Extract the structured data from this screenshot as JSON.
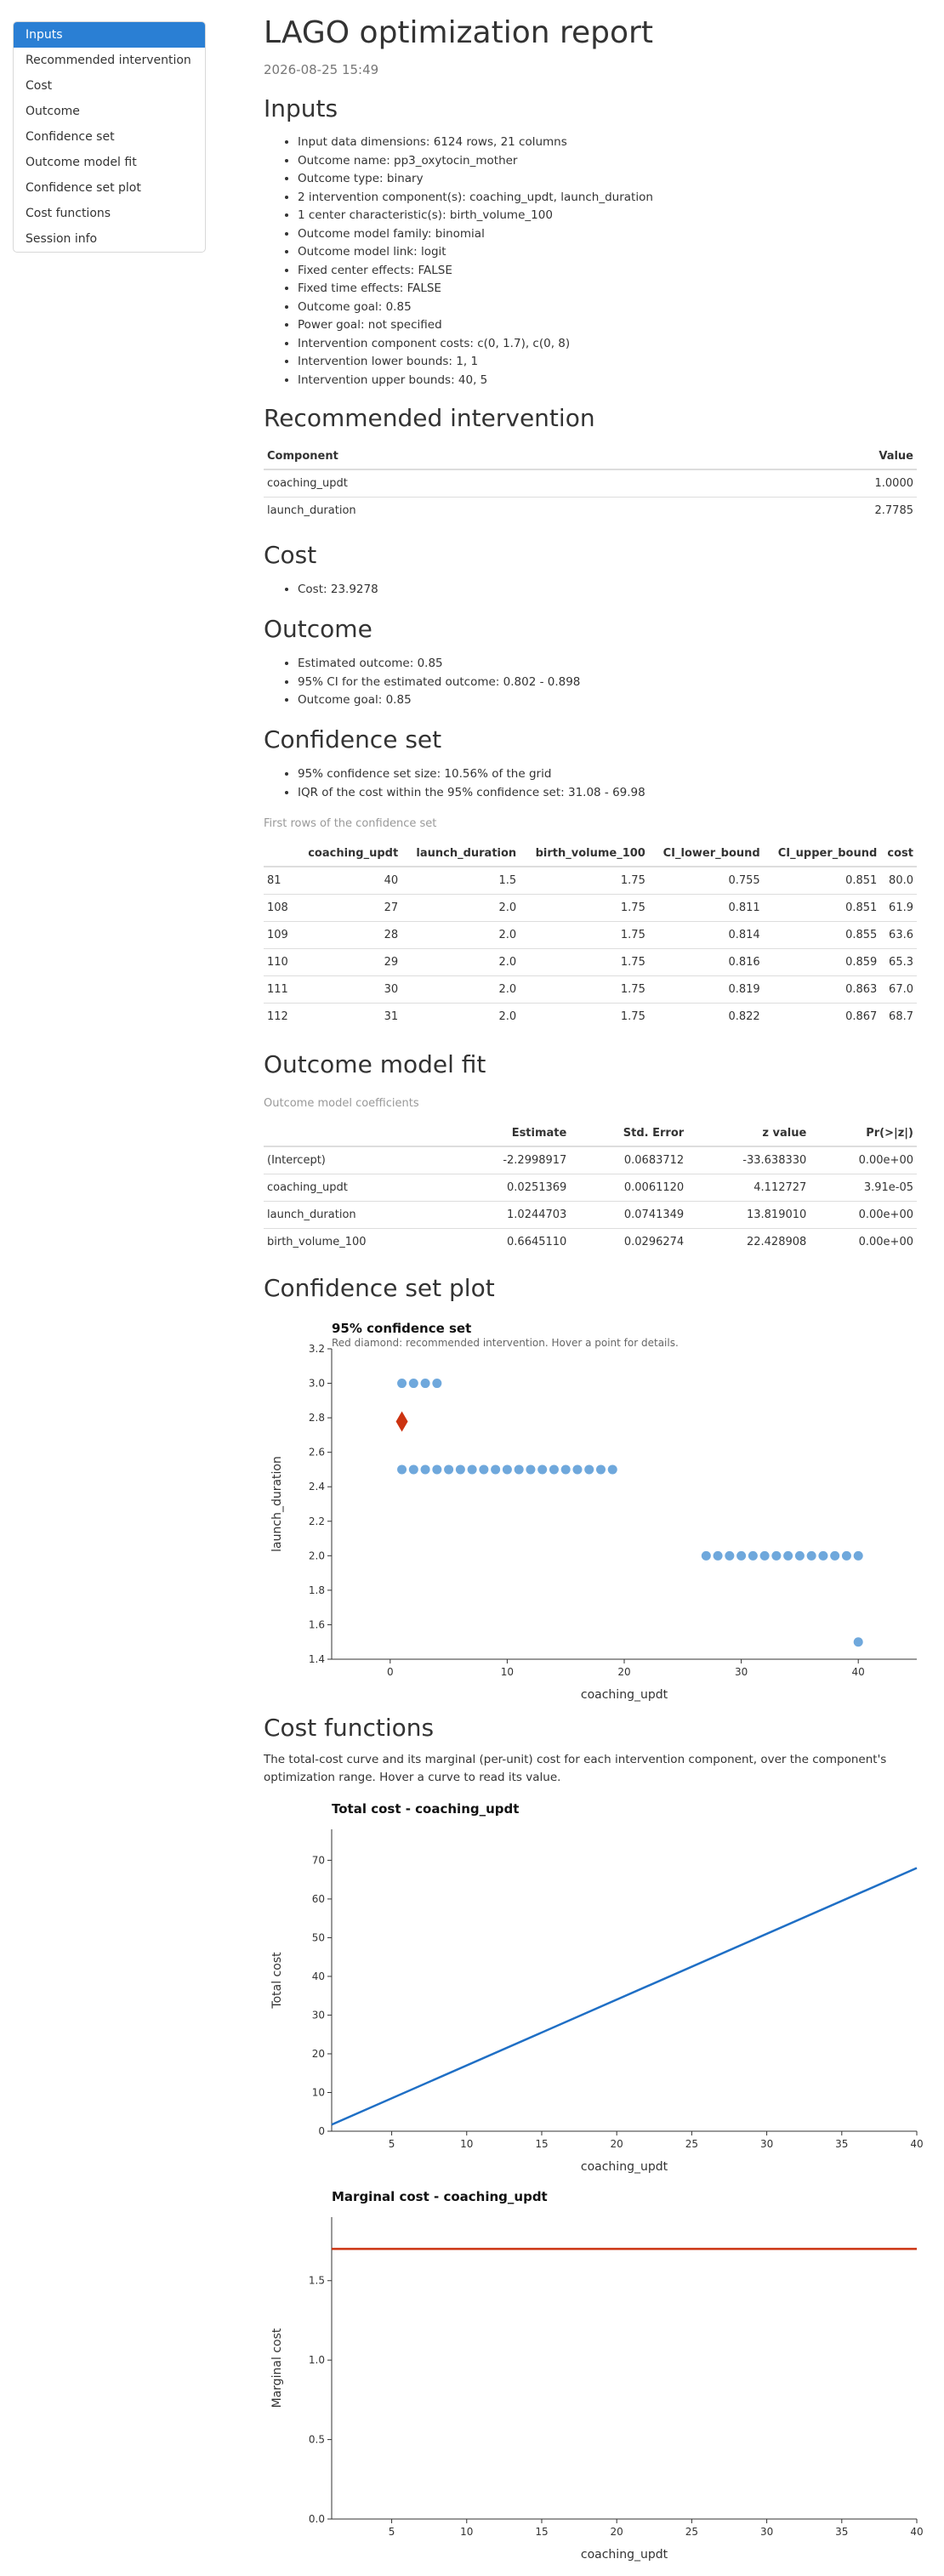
{
  "nav": {
    "items": [
      "Inputs",
      "Recommended intervention",
      "Cost",
      "Outcome",
      "Confidence set",
      "Outcome model fit",
      "Confidence set plot",
      "Cost functions",
      "Session info"
    ]
  },
  "title": "LAGO optimization report",
  "date": "2026-08-25 15:49",
  "inputs": {
    "heading": "Inputs",
    "items": [
      "Input data dimensions: 6124 rows, 21 columns",
      "Outcome name: pp3_oxytocin_mother",
      "Outcome type: binary",
      "2 intervention component(s): coaching_updt, launch_duration",
      "1 center characteristic(s): birth_volume_100",
      "Outcome model family: binomial",
      "Outcome model link: logit",
      "Fixed center effects: FALSE",
      "Fixed time effects: FALSE",
      "Outcome goal: 0.85",
      "Power goal: not specified",
      "Intervention component costs: c(0, 1.7), c(0, 8)",
      "Intervention lower bounds: 1, 1",
      "Intervention upper bounds: 40, 5"
    ]
  },
  "recommended": {
    "heading": "Recommended intervention",
    "headers": [
      "Component",
      "Value"
    ],
    "rows": [
      [
        "coaching_updt",
        "1.0000"
      ],
      [
        "launch_duration",
        "2.7785"
      ]
    ]
  },
  "cost": {
    "heading": "Cost",
    "items": [
      "Cost: 23.9278"
    ]
  },
  "outcome": {
    "heading": "Outcome",
    "items": [
      "Estimated outcome: 0.85",
      "95% CI for the estimated outcome: 0.802 - 0.898",
      "Outcome goal: 0.85"
    ]
  },
  "confset": {
    "heading": "Confidence set",
    "items": [
      "95% confidence set size: 10.56% of the grid",
      "IQR of the cost within the 95% confidence set: 31.08 - 69.98"
    ],
    "caption": "First rows of the confidence set",
    "headers": [
      "",
      "coaching_updt",
      "launch_duration",
      "birth_volume_100",
      "CI_lower_bound",
      "CI_upper_bound",
      "cost"
    ],
    "rows": [
      [
        "81",
        "40",
        "1.5",
        "1.75",
        "0.755",
        "0.851",
        "80.0"
      ],
      [
        "108",
        "27",
        "2.0",
        "1.75",
        "0.811",
        "0.851",
        "61.9"
      ],
      [
        "109",
        "28",
        "2.0",
        "1.75",
        "0.814",
        "0.855",
        "63.6"
      ],
      [
        "110",
        "29",
        "2.0",
        "1.75",
        "0.816",
        "0.859",
        "65.3"
      ],
      [
        "111",
        "30",
        "2.0",
        "1.75",
        "0.819",
        "0.863",
        "67.0"
      ],
      [
        "112",
        "31",
        "2.0",
        "1.75",
        "0.822",
        "0.867",
        "68.7"
      ]
    ]
  },
  "modelfit": {
    "heading": "Outcome model fit",
    "caption": "Outcome model coefficients",
    "headers": [
      "",
      "Estimate",
      "Std. Error",
      "z value",
      "Pr(>|z|)"
    ],
    "rows": [
      [
        "(Intercept)",
        "-2.2998917",
        "0.0683712",
        "-33.638330",
        "0.00e+00"
      ],
      [
        "coaching_updt",
        "0.0251369",
        "0.0061120",
        "4.112727",
        "3.91e-05"
      ],
      [
        "launch_duration",
        "1.0244703",
        "0.0741349",
        "13.819010",
        "0.00e+00"
      ],
      [
        "birth_volume_100",
        "0.6645110",
        "0.0296274",
        "22.428908",
        "0.00e+00"
      ]
    ]
  },
  "confplot": {
    "heading": "Confidence set plot"
  },
  "costfun": {
    "heading": "Cost functions",
    "description": "The total-cost curve and its marginal (per-unit) cost for each intervention component, over the component's optimization range. Hover a curve to read its value."
  },
  "chart_data": [
    {
      "type": "scatter",
      "title": "95% confidence set",
      "subtitle": "Red diamond: recommended intervention. Hover a point for details.",
      "xlabel": "coaching_updt",
      "ylabel": "launch_duration",
      "xlim": [
        -5,
        45
      ],
      "ylim": [
        1.4,
        3.2
      ],
      "xticks": [
        0,
        10,
        20,
        30,
        40
      ],
      "yticks": [
        1.4,
        1.6,
        1.8,
        2.0,
        2.2,
        2.4,
        2.6,
        2.8,
        3.0,
        3.2
      ],
      "points_color": "#6fa8dc",
      "groups": [
        {
          "y": 3.0,
          "x": [
            1,
            2,
            3,
            4
          ]
        },
        {
          "y": 2.5,
          "x": [
            1,
            2,
            3,
            4,
            5,
            6,
            7,
            8,
            9,
            10,
            11,
            12,
            13,
            14,
            15,
            16,
            17,
            18,
            19
          ]
        },
        {
          "y": 2.0,
          "x": [
            27,
            28,
            29,
            30,
            31,
            32,
            33,
            34,
            35,
            36,
            37,
            38,
            39,
            40
          ]
        },
        {
          "y": 1.5,
          "x": [
            40
          ]
        }
      ],
      "recommended": {
        "x": 1.0,
        "y": 2.7785,
        "color": "#cc3311"
      }
    },
    {
      "type": "line",
      "title": "Total cost - coaching_updt",
      "xlabel": "coaching_updt",
      "ylabel": "Total cost",
      "xlim": [
        1,
        40
      ],
      "ylim": [
        0,
        78
      ],
      "xticks": [
        5,
        10,
        15,
        20,
        25,
        30,
        35,
        40
      ],
      "yticks": [
        0,
        10,
        20,
        30,
        40,
        50,
        60,
        70
      ],
      "color": "#1f6fc5",
      "x": [
        1,
        40
      ],
      "y": [
        1.7,
        68.0
      ]
    },
    {
      "type": "line",
      "title": "Marginal cost - coaching_updt",
      "xlabel": "coaching_updt",
      "ylabel": "Marginal cost",
      "xlim": [
        1,
        40
      ],
      "ylim": [
        0,
        1.9
      ],
      "xticks": [
        5,
        10,
        15,
        20,
        25,
        30,
        35,
        40
      ],
      "yticks": [
        0.0,
        0.5,
        1.0,
        1.5
      ],
      "ytick_labels": [
        "0.0",
        "0.5",
        "1.0",
        "1.5"
      ],
      "color": "#cc3311",
      "x": [
        1,
        40
      ],
      "y": [
        1.7,
        1.7
      ]
    }
  ]
}
